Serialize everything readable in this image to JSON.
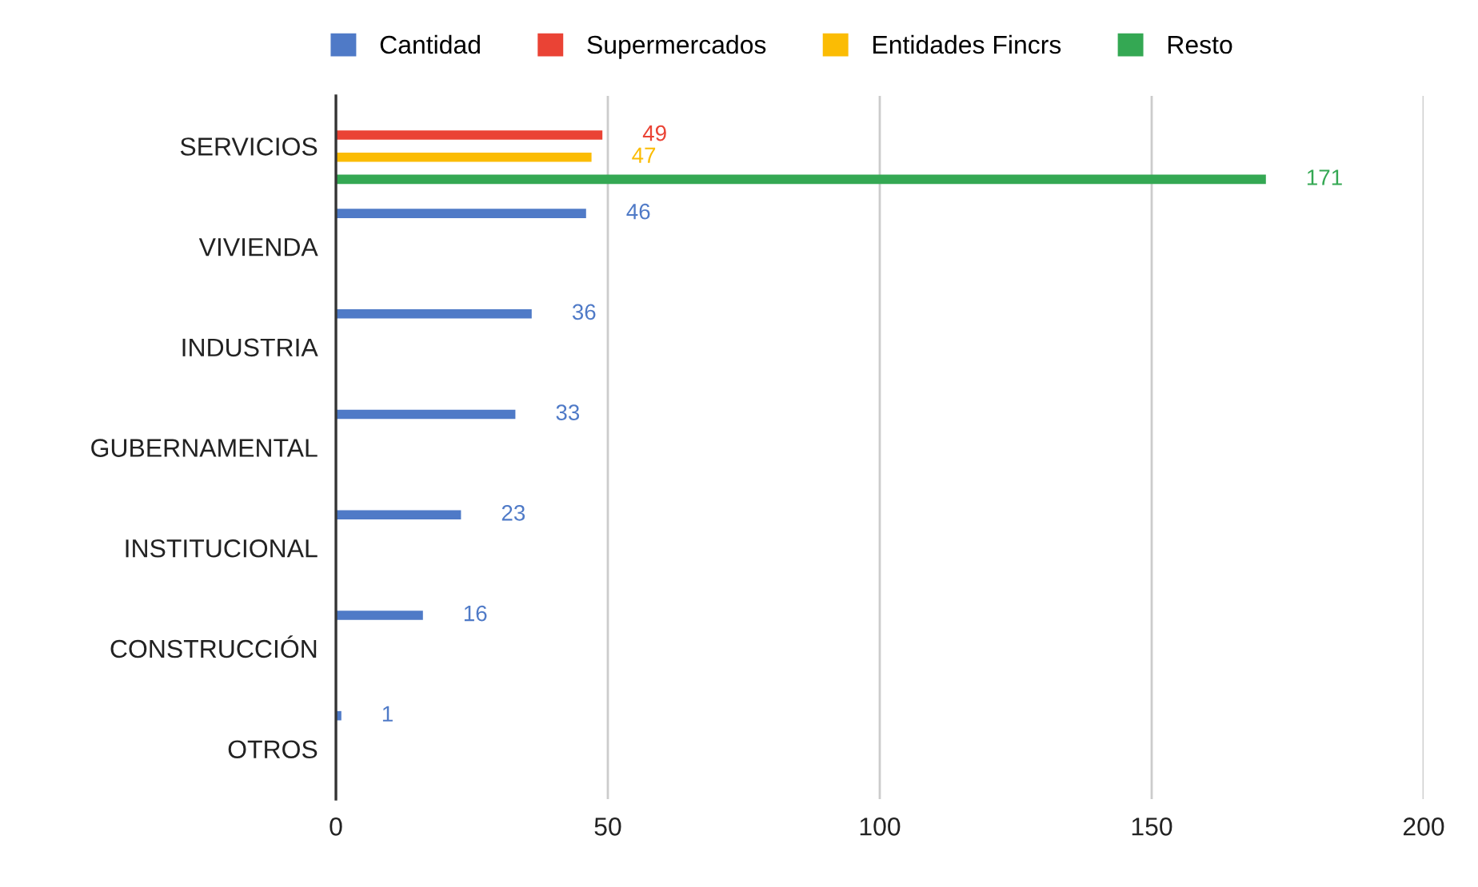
{
  "chart_data": {
    "type": "bar",
    "orientation": "horizontal",
    "categories": [
      "SERVICIOS",
      "VIVIENDA",
      "INDUSTRIA",
      "GUBERNAMENTAL",
      "INSTITUCIONAL",
      "CONSTRUCCIÓN",
      "OTROS"
    ],
    "series": [
      {
        "name": "Cantidad",
        "color": "#4f7ac7",
        "values": [
          null,
          46,
          36,
          33,
          23,
          16,
          1
        ]
      },
      {
        "name": "Supermercados",
        "color": "#ea4335",
        "values": [
          49,
          null,
          null,
          null,
          null,
          null,
          null
        ]
      },
      {
        "name": "Entidades Fincrs",
        "color": "#fbbc04",
        "values": [
          47,
          null,
          null,
          null,
          null,
          null,
          null
        ]
      },
      {
        "name": "Resto",
        "color": "#34a853",
        "values": [
          171,
          null,
          null,
          null,
          null,
          null,
          null
        ]
      }
    ],
    "xlim": [
      0,
      200
    ],
    "xticks": [
      0,
      50,
      100,
      150,
      200
    ],
    "grid": "x",
    "legend": "top",
    "data_labels": true
  }
}
